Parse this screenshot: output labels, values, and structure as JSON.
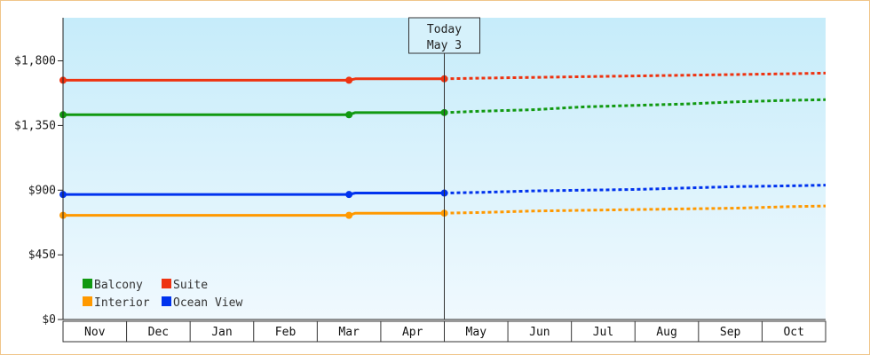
{
  "chart_data": {
    "type": "line",
    "title": "",
    "xlabel": "",
    "ylabel": "",
    "ylim": [
      0,
      2100
    ],
    "y_ticks": [
      {
        "value": 0,
        "label": "$0"
      },
      {
        "value": 450,
        "label": "$450"
      },
      {
        "value": 900,
        "label": "$900"
      },
      {
        "value": 1350,
        "label": "$1,350"
      },
      {
        "value": 1800,
        "label": "$1,800"
      }
    ],
    "categories": [
      "Nov",
      "Dec",
      "Jan",
      "Feb",
      "Mar",
      "Apr",
      "May",
      "Jun",
      "Jul",
      "Aug",
      "Sep",
      "Oct"
    ],
    "marker": {
      "label_line1": "Today",
      "label_line2": "May 3",
      "x": 6.0
    },
    "legend_position": "bottom-left",
    "series": [
      {
        "name": "Balcony",
        "color": "#119911",
        "actual": [
          [
            0,
            1425
          ],
          [
            4.5,
            1425
          ],
          [
            4.6,
            1440
          ],
          [
            6.0,
            1440
          ]
        ],
        "projected": [
          [
            6.0,
            1440
          ],
          [
            6.6,
            1450
          ],
          [
            7.4,
            1460
          ],
          [
            8.2,
            1480
          ],
          [
            9.0,
            1490
          ],
          [
            9.8,
            1500
          ],
          [
            10.6,
            1515
          ],
          [
            11.4,
            1525
          ],
          [
            12.0,
            1530
          ]
        ]
      },
      {
        "name": "Suite",
        "color": "#ee3311",
        "actual": [
          [
            0,
            1665
          ],
          [
            4.5,
            1665
          ],
          [
            4.6,
            1675
          ],
          [
            6.0,
            1675
          ]
        ],
        "projected": [
          [
            6.0,
            1675
          ],
          [
            6.6,
            1680
          ],
          [
            7.4,
            1685
          ],
          [
            8.2,
            1690
          ],
          [
            9.0,
            1695
          ],
          [
            9.8,
            1700
          ],
          [
            10.6,
            1705
          ],
          [
            11.4,
            1710
          ],
          [
            12.0,
            1715
          ]
        ]
      },
      {
        "name": "Interior",
        "color": "#ff9900",
        "actual": [
          [
            0,
            725
          ],
          [
            4.5,
            725
          ],
          [
            4.6,
            740
          ],
          [
            6.0,
            740
          ]
        ],
        "projected": [
          [
            6.0,
            740
          ],
          [
            6.6,
            745
          ],
          [
            7.4,
            755
          ],
          [
            8.2,
            760
          ],
          [
            9.0,
            765
          ],
          [
            9.8,
            770
          ],
          [
            10.6,
            775
          ],
          [
            11.4,
            785
          ],
          [
            12.0,
            790
          ]
        ]
      },
      {
        "name": "Ocean View",
        "color": "#0033ee",
        "actual": [
          [
            0,
            870
          ],
          [
            4.5,
            870
          ],
          [
            4.6,
            880
          ],
          [
            6.0,
            880
          ]
        ],
        "projected": [
          [
            6.0,
            880
          ],
          [
            6.6,
            885
          ],
          [
            7.4,
            895
          ],
          [
            8.2,
            900
          ],
          [
            9.0,
            905
          ],
          [
            9.8,
            915
          ],
          [
            10.6,
            925
          ],
          [
            11.4,
            930
          ],
          [
            12.0,
            935
          ]
        ]
      }
    ],
    "points": [
      {
        "series": 0,
        "x": 0,
        "y": 1425
      },
      {
        "series": 0,
        "x": 4.5,
        "y": 1425
      },
      {
        "series": 0,
        "x": 6.0,
        "y": 1440
      },
      {
        "series": 1,
        "x": 0,
        "y": 1665
      },
      {
        "series": 1,
        "x": 4.5,
        "y": 1665
      },
      {
        "series": 1,
        "x": 6.0,
        "y": 1675
      },
      {
        "series": 2,
        "x": 0,
        "y": 725
      },
      {
        "series": 2,
        "x": 4.5,
        "y": 725
      },
      {
        "series": 2,
        "x": 6.0,
        "y": 740
      },
      {
        "series": 3,
        "x": 0,
        "y": 870
      },
      {
        "series": 3,
        "x": 4.5,
        "y": 870
      },
      {
        "series": 3,
        "x": 6.0,
        "y": 880
      }
    ]
  }
}
